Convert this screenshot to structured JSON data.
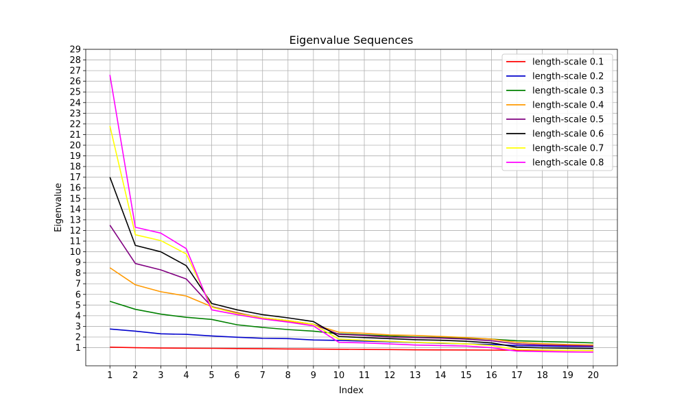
{
  "chart_data": {
    "type": "line",
    "title": "Eigenvalue Sequences",
    "xlabel": "Index",
    "ylabel": "Eigenvalue",
    "x": [
      1,
      2,
      3,
      4,
      5,
      6,
      7,
      8,
      9,
      10,
      11,
      12,
      13,
      14,
      15,
      16,
      17,
      18,
      19,
      20
    ],
    "xlim": [
      0.05,
      20.95
    ],
    "ylim": [
      -0.7,
      29
    ],
    "yticks": [
      1,
      2,
      3,
      4,
      5,
      6,
      7,
      8,
      9,
      10,
      11,
      12,
      13,
      14,
      15,
      16,
      17,
      18,
      19,
      20,
      21,
      22,
      23,
      24,
      25,
      26,
      27,
      28,
      29
    ],
    "grid": true,
    "legend_position": "top-right",
    "series": [
      {
        "name": "length-scale 0.1",
        "color": "#ff0000",
        "values": [
          1.05,
          1.0,
          0.97,
          0.95,
          0.94,
          0.92,
          0.9,
          0.88,
          0.87,
          0.85,
          0.83,
          0.82,
          0.8,
          0.79,
          0.78,
          0.77,
          0.76,
          0.75,
          0.74,
          0.73
        ]
      },
      {
        "name": "length-scale 0.2",
        "color": "#0000cc",
        "values": [
          2.75,
          2.55,
          2.3,
          2.25,
          2.1,
          1.98,
          1.88,
          1.85,
          1.72,
          1.68,
          1.62,
          1.55,
          1.48,
          1.42,
          1.35,
          1.3,
          1.2,
          1.15,
          1.12,
          1.1
        ]
      },
      {
        "name": "length-scale 0.3",
        "color": "#008000",
        "values": [
          5.35,
          4.6,
          4.15,
          3.85,
          3.65,
          3.15,
          2.9,
          2.7,
          2.55,
          2.3,
          2.2,
          2.1,
          2.0,
          1.95,
          1.9,
          1.8,
          1.65,
          1.58,
          1.52,
          1.45
        ]
      },
      {
        "name": "length-scale 0.4",
        "color": "#ff9900",
        "values": [
          8.5,
          6.9,
          6.25,
          5.85,
          4.85,
          4.3,
          3.75,
          3.45,
          3.2,
          2.45,
          2.35,
          2.2,
          2.15,
          2.05,
          1.95,
          1.8,
          1.5,
          1.38,
          1.3,
          1.25
        ]
      },
      {
        "name": "length-scale 0.5",
        "color": "#800080",
        "values": [
          12.5,
          8.9,
          8.3,
          7.45,
          4.85,
          4.25,
          3.8,
          3.55,
          3.2,
          2.25,
          2.15,
          2.0,
          1.95,
          1.9,
          1.8,
          1.65,
          1.35,
          1.25,
          1.2,
          1.15
        ]
      },
      {
        "name": "length-scale 0.6",
        "color": "#000000",
        "values": [
          17.0,
          10.6,
          10.0,
          8.7,
          5.15,
          4.55,
          4.1,
          3.8,
          3.45,
          2.05,
          1.95,
          1.85,
          1.75,
          1.7,
          1.6,
          1.45,
          1.05,
          0.98,
          0.95,
          0.93
        ]
      },
      {
        "name": "length-scale 0.7",
        "color": "#ffff00",
        "values": [
          21.8,
          11.6,
          11.05,
          9.8,
          4.8,
          4.2,
          3.8,
          3.55,
          3.2,
          1.8,
          1.7,
          1.6,
          1.5,
          1.45,
          1.35,
          1.2,
          0.82,
          0.78,
          0.75,
          0.72
        ]
      },
      {
        "name": "length-scale 0.8",
        "color": "#ff00ff",
        "values": [
          26.6,
          12.3,
          11.75,
          10.3,
          4.55,
          4.1,
          3.7,
          3.4,
          3.05,
          1.5,
          1.45,
          1.35,
          1.25,
          1.2,
          1.15,
          1.0,
          0.68,
          0.63,
          0.6,
          0.58
        ]
      }
    ]
  }
}
